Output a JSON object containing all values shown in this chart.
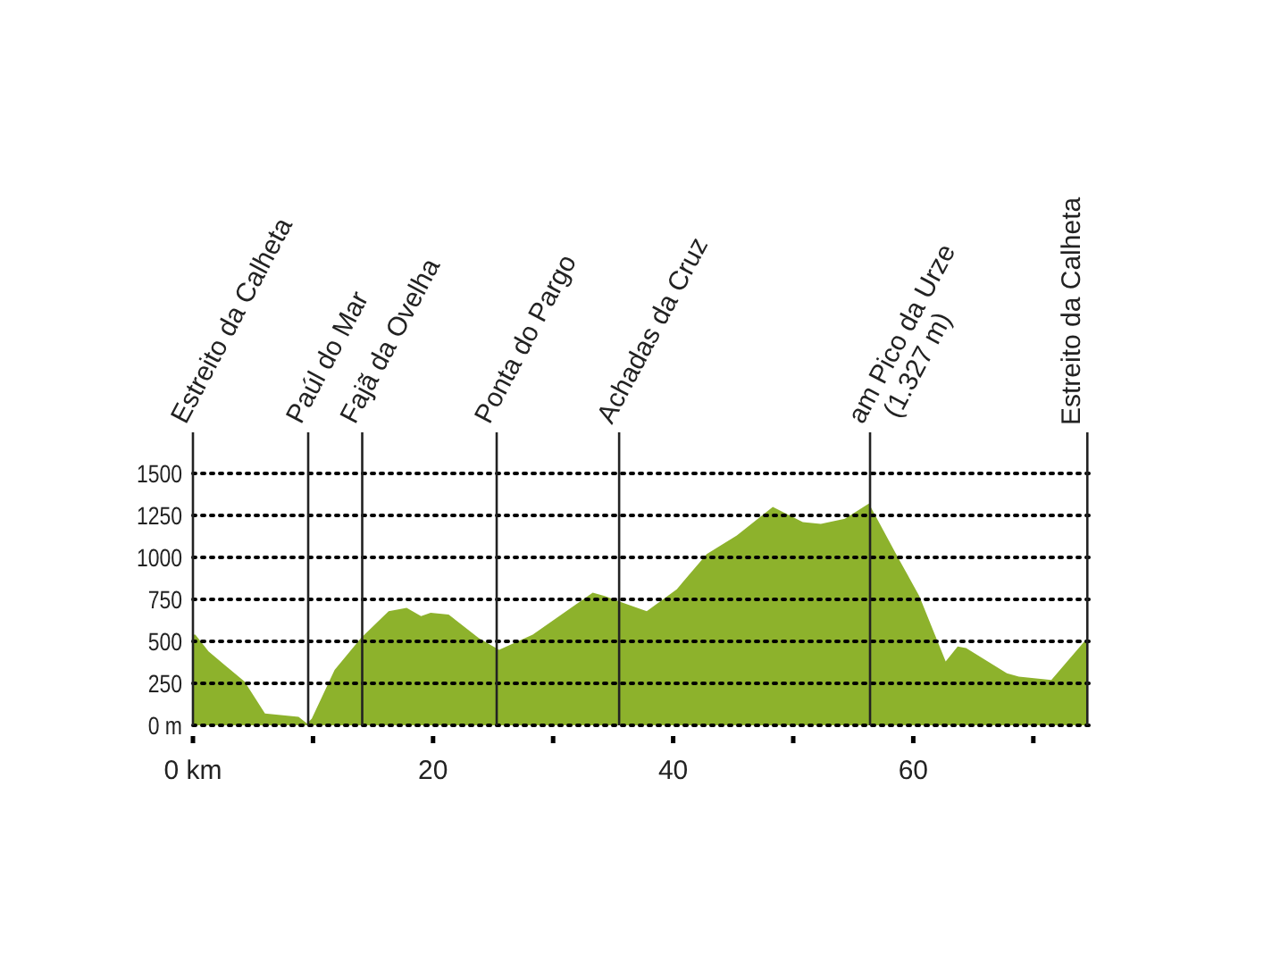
{
  "chart_data": {
    "type": "area",
    "x": [
      0,
      0.2,
      1.3,
      4.3,
      6.0,
      8.8,
      9.5,
      9.9,
      11.8,
      14.0,
      16.3,
      17.8,
      19.0,
      19.8,
      21.3,
      23.8,
      25.5,
      28.3,
      33.3,
      34.3,
      35.8,
      37.8,
      40.3,
      42.8,
      45.3,
      48.3,
      50.8,
      52.3,
      54.3,
      56.3,
      58.8,
      60.5,
      62.7,
      63.7,
      64.4,
      67.8,
      68.8,
      71.5,
      74.5
    ],
    "series": [
      {
        "color": "#8db22c",
        "values": [
          540,
          540,
          440,
          260,
          70,
          50,
          10,
          40,
          330,
          520,
          680,
          700,
          650,
          670,
          660,
          520,
          450,
          540,
          790,
          770,
          730,
          680,
          810,
          1020,
          1130,
          1300,
          1210,
          1200,
          1230,
          1320,
          990,
          770,
          380,
          470,
          460,
          310,
          290,
          270,
          520
        ]
      }
    ],
    "xlim": [
      0,
      75
    ],
    "ylim": [
      0,
      1500
    ],
    "xticks": [
      {
        "value": 0,
        "label": "0 km"
      },
      {
        "value": 10,
        "label": null
      },
      20,
      {
        "value": 30,
        "label": null
      },
      40,
      {
        "value": 50,
        "label": null
      },
      60,
      {
        "value": 70,
        "label": null
      }
    ],
    "yticks": [
      {
        "value": 0,
        "label": "0 m"
      },
      250,
      500,
      750,
      1000,
      1250,
      1500
    ],
    "grid": "y",
    "line_style": "dotted",
    "ref_lines": [
      {
        "axis": "x",
        "value": 0,
        "label": "Estreito da Calheta"
      },
      {
        "axis": "x",
        "value": 9.6,
        "label": "Paúl do Mar"
      },
      {
        "axis": "x",
        "value": 14.1,
        "label": "Fajã da Ovelha"
      },
      {
        "axis": "x",
        "value": 25.3,
        "label": "Ponta do Pargo"
      },
      {
        "axis": "x",
        "value": 35.5,
        "label": "Achadas da Cruz"
      },
      {
        "axis": "x",
        "value": 56.4,
        "label": "am Pico da Urze\n(1.327 m)"
      },
      {
        "axis": "x",
        "value": 74.5,
        "label": "Estreito da Calheta"
      }
    ]
  }
}
